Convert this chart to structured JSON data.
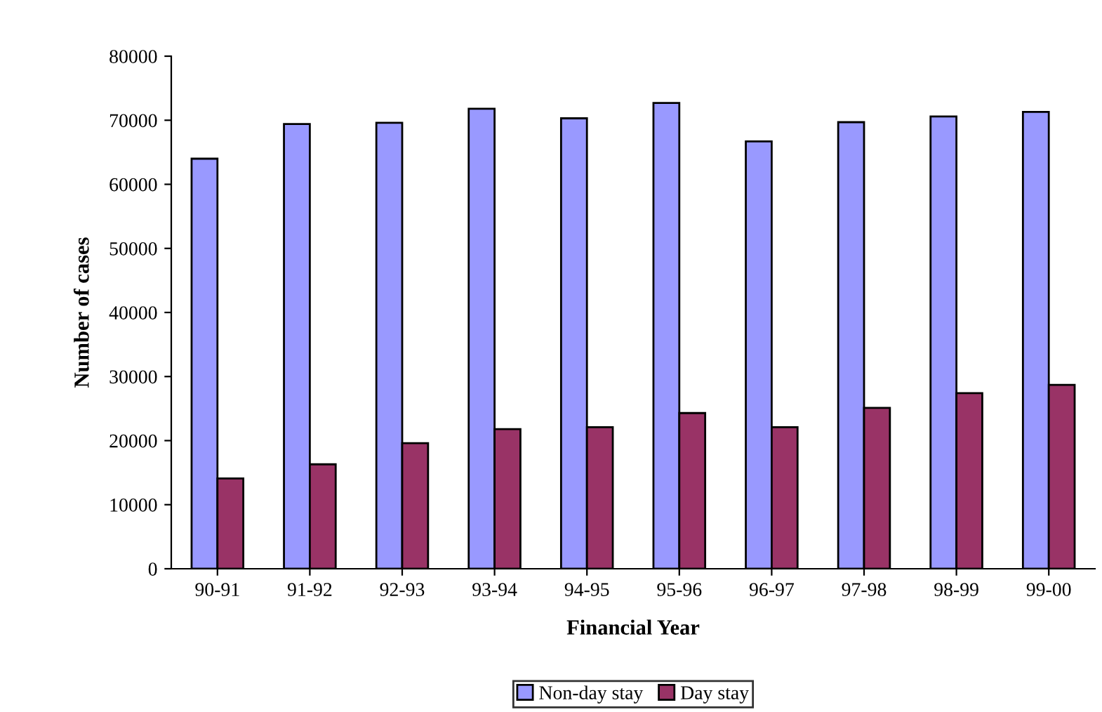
{
  "chart_data": {
    "type": "bar",
    "xlabel": "Financial Year",
    "ylabel": "Number of cases",
    "categories": [
      "90-91",
      "91-92",
      "92-93",
      "93-94",
      "94-95",
      "95-96",
      "96-97",
      "97-98",
      "98-99",
      "99-00"
    ],
    "series": [
      {
        "name": "Non-day stay",
        "color": "#9999ff",
        "values": [
          64000,
          69400,
          69600,
          71800,
          70300,
          72700,
          66700,
          69700,
          70600,
          71300
        ]
      },
      {
        "name": "Day stay",
        "color": "#993366",
        "values": [
          14100,
          16300,
          19600,
          21800,
          22100,
          24300,
          22100,
          25100,
          27400,
          28700
        ]
      }
    ],
    "ylim": [
      0,
      80000
    ],
    "yticks": [
      0,
      10000,
      20000,
      30000,
      40000,
      50000,
      60000,
      70000,
      80000
    ],
    "grid": false,
    "legend": "bottom"
  }
}
